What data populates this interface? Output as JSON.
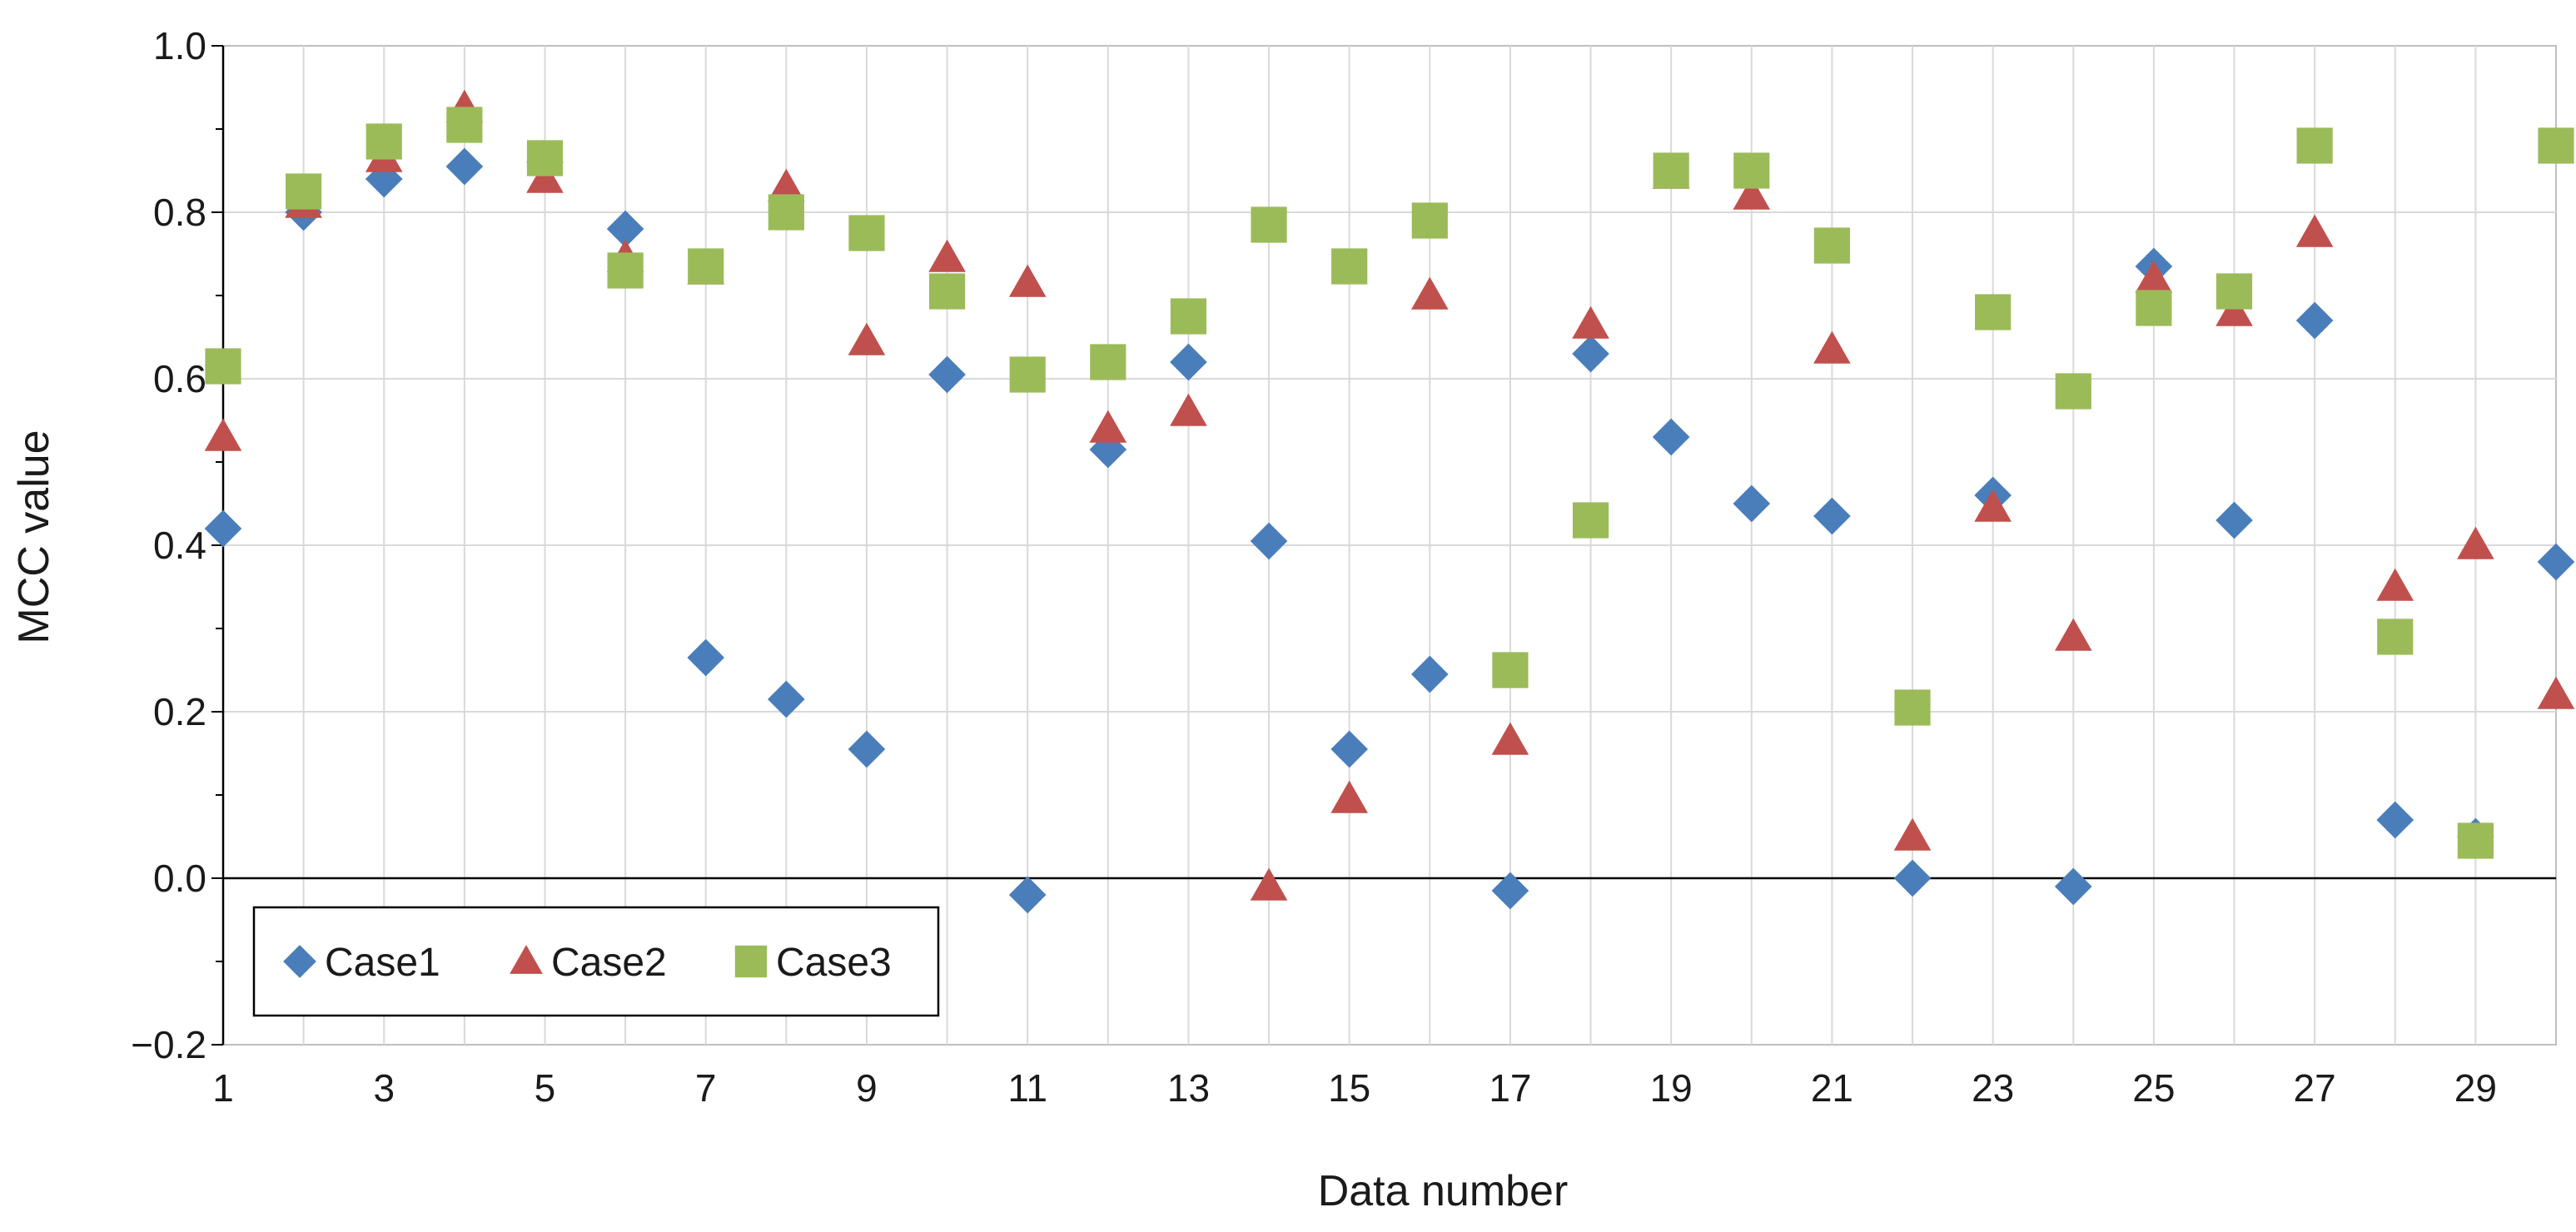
{
  "chart_data": {
    "type": "scatter",
    "title": "",
    "xlabel": "Data number",
    "ylabel": "MCC value",
    "xlim": [
      1,
      30
    ],
    "ylim": [
      -0.2,
      1.0
    ],
    "x_tick_labels": [
      "1",
      "3",
      "5",
      "7",
      "9",
      "11",
      "13",
      "15",
      "17",
      "19",
      "21",
      "23",
      "25",
      "27",
      "29"
    ],
    "y_tick_labels": [
      "−0.2",
      "0.0",
      "0.2",
      "0.4",
      "0.6",
      "0.8",
      "1.0"
    ],
    "grid": true,
    "legend_position": "bottom-left",
    "x": [
      1,
      2,
      3,
      4,
      5,
      6,
      7,
      8,
      9,
      10,
      11,
      12,
      13,
      14,
      15,
      16,
      17,
      18,
      19,
      20,
      21,
      22,
      23,
      24,
      25,
      26,
      27,
      28,
      29,
      30
    ],
    "series": [
      {
        "name": "Case1",
        "marker": "diamond",
        "color": "#4a7ebb",
        "values": [
          0.42,
          0.8,
          0.84,
          0.855,
          0.86,
          0.78,
          0.265,
          0.215,
          0.155,
          0.605,
          -0.02,
          0.515,
          0.62,
          0.405,
          0.155,
          0.245,
          -0.015,
          0.63,
          0.53,
          0.45,
          0.435,
          0.0,
          0.46,
          -0.01,
          0.735,
          0.43,
          0.67,
          0.07,
          0.05,
          0.38
        ]
      },
      {
        "name": "Case2",
        "marker": "triangle",
        "color": "#c0504d",
        "values": [
          0.53,
          0.81,
          0.865,
          0.925,
          0.84,
          0.745,
          0.73,
          0.83,
          0.645,
          0.745,
          0.715,
          0.54,
          0.56,
          -0.01,
          0.095,
          0.7,
          0.165,
          0.665,
          0.845,
          0.82,
          0.635,
          0.05,
          0.445,
          0.29,
          0.72,
          0.68,
          0.775,
          0.35,
          0.4,
          0.22
        ]
      },
      {
        "name": "Case3",
        "marker": "square",
        "color": "#9bbb59",
        "values": [
          0.615,
          0.825,
          0.885,
          0.905,
          0.865,
          0.73,
          0.735,
          0.8,
          0.775,
          0.705,
          0.605,
          0.62,
          0.675,
          0.785,
          0.735,
          0.79,
          0.25,
          0.43,
          0.85,
          0.85,
          0.76,
          0.205,
          0.68,
          0.585,
          0.685,
          0.705,
          0.88,
          0.29,
          0.045,
          0.88
        ]
      }
    ]
  }
}
